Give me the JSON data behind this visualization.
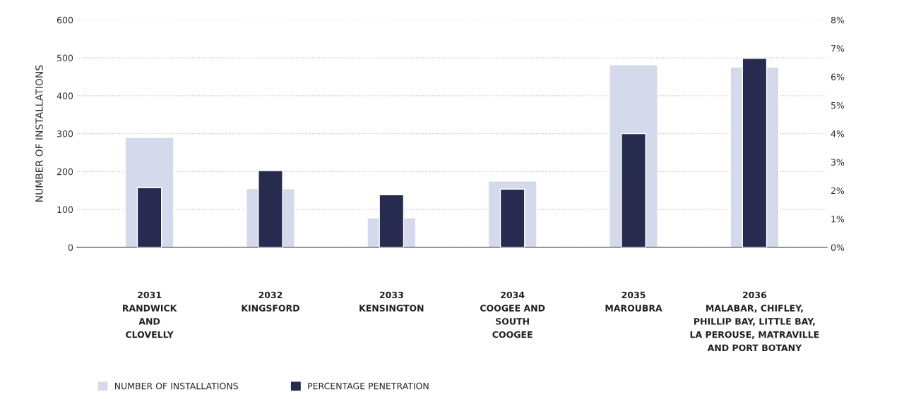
{
  "chart_data": {
    "type": "bar",
    "categories": [
      "2031\nRANDWICK\nAND\nCLOVELLY",
      "2032\nKINGSFORD",
      "2033\nKENSINGTON",
      "2034\nCOOGEE AND\nSOUTH\nCOOGEE",
      "2035\nMAROUBRA",
      "2036\nMALABAR, CHIFLEY,\nPHILLIP BAY, LITTLE BAY,\nLA PEROUSE, MATRAVILLE\nAND PORT BOTANY"
    ],
    "ylabel": "NUMBER OF INSTALLATIONS",
    "series": [
      {
        "name": "NUMBER OF INSTALLATIONS",
        "color": "#d5d9ec",
        "values": [
          290,
          155,
          78,
          175,
          482,
          476
        ]
      },
      {
        "name": "PERCENTAGE PENETRATION",
        "color": "#262b4f",
        "axis": "y2",
        "values": [
          2.1,
          2.7,
          1.85,
          2.05,
          4.0,
          6.65
        ]
      }
    ],
    "ylim": [
      0,
      600
    ],
    "yticks": [
      0,
      100,
      200,
      300,
      400,
      500,
      600
    ],
    "y2lim": [
      0,
      8
    ],
    "y2ticks": [
      {
        "value": 0,
        "label": "0%"
      },
      {
        "value": 1,
        "label": "1%"
      },
      {
        "value": 2,
        "label": "2%"
      },
      {
        "value": 3,
        "label": "3%"
      },
      {
        "value": 4,
        "label": "4%"
      },
      {
        "value": 5,
        "label": "5%"
      },
      {
        "value": 6,
        "label": "6%"
      },
      {
        "value": 7,
        "label": "7%"
      },
      {
        "value": 8,
        "label": "8%"
      }
    ],
    "grid": "y",
    "legend": "bottom left"
  }
}
